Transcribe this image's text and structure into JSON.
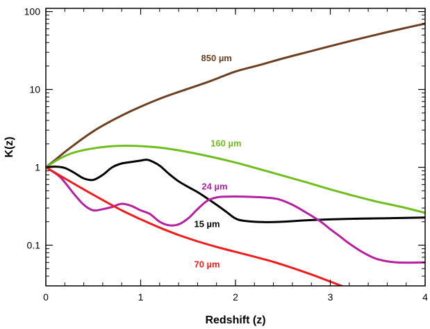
{
  "chart_data": {
    "type": "line",
    "xlabel": "Redshift (z)",
    "ylabel": "K(z)",
    "xlim": [
      0,
      4
    ],
    "ylim": [
      0.03,
      110
    ],
    "yscale": "log",
    "grid": false,
    "x_ticks": [
      0,
      1,
      2,
      3,
      4
    ],
    "y_ticks": [
      0.1,
      1,
      10,
      100
    ],
    "y_tick_labels": [
      "0.1",
      "1",
      "10",
      "100"
    ],
    "series": [
      {
        "name": "850 µm",
        "color": "#6b3f1f",
        "label_at": [
          1.8,
          23
        ],
        "points": [
          [
            0,
            1
          ],
          [
            0.1,
            1.25
          ],
          [
            0.25,
            1.75
          ],
          [
            0.5,
            2.9
          ],
          [
            0.75,
            4.3
          ],
          [
            1.0,
            6.0
          ],
          [
            1.25,
            8.0
          ],
          [
            1.5,
            10.2
          ],
          [
            1.75,
            13.0
          ],
          [
            2.0,
            17.0
          ],
          [
            2.25,
            20.5
          ],
          [
            2.5,
            25.0
          ],
          [
            2.75,
            30.0
          ],
          [
            3.0,
            36.0
          ],
          [
            3.25,
            43.0
          ],
          [
            3.5,
            51.0
          ],
          [
            3.75,
            60.0
          ],
          [
            4.0,
            70.0
          ]
        ]
      },
      {
        "name": "160 µm",
        "color": "#6fbe1e",
        "label_at": [
          1.9,
          1.85
        ],
        "points": [
          [
            0,
            1
          ],
          [
            0.15,
            1.3
          ],
          [
            0.3,
            1.55
          ],
          [
            0.5,
            1.75
          ],
          [
            0.75,
            1.88
          ],
          [
            1.0,
            1.87
          ],
          [
            1.25,
            1.76
          ],
          [
            1.5,
            1.57
          ],
          [
            1.75,
            1.36
          ],
          [
            2.0,
            1.15
          ],
          [
            2.25,
            0.95
          ],
          [
            2.5,
            0.78
          ],
          [
            2.75,
            0.64
          ],
          [
            3.0,
            0.52
          ],
          [
            3.25,
            0.43
          ],
          [
            3.5,
            0.36
          ],
          [
            3.75,
            0.31
          ],
          [
            4.0,
            0.26
          ]
        ]
      },
      {
        "name": "15 µm",
        "color": "#000000",
        "label_at": [
          1.7,
          0.17
        ],
        "points": [
          [
            0,
            1
          ],
          [
            0.1,
            1.02
          ],
          [
            0.2,
            0.98
          ],
          [
            0.3,
            0.85
          ],
          [
            0.4,
            0.72
          ],
          [
            0.5,
            0.69
          ],
          [
            0.6,
            0.8
          ],
          [
            0.7,
            1.0
          ],
          [
            0.8,
            1.12
          ],
          [
            0.9,
            1.17
          ],
          [
            1.0,
            1.22
          ],
          [
            1.05,
            1.25
          ],
          [
            1.1,
            1.22
          ],
          [
            1.2,
            1.05
          ],
          [
            1.3,
            0.82
          ],
          [
            1.4,
            0.66
          ],
          [
            1.5,
            0.56
          ],
          [
            1.6,
            0.48
          ],
          [
            1.7,
            0.4
          ],
          [
            1.8,
            0.33
          ],
          [
            1.9,
            0.27
          ],
          [
            2.0,
            0.22
          ],
          [
            2.1,
            0.205
          ],
          [
            2.3,
            0.198
          ],
          [
            2.5,
            0.2
          ],
          [
            2.8,
            0.21
          ],
          [
            3.2,
            0.218
          ],
          [
            3.6,
            0.222
          ],
          [
            4.0,
            0.226
          ]
        ]
      },
      {
        "name": "24 µm",
        "color": "#b51fa0",
        "label_at": [
          1.78,
          0.52
        ],
        "points": [
          [
            0,
            1
          ],
          [
            0.15,
            0.75
          ],
          [
            0.3,
            0.45
          ],
          [
            0.4,
            0.33
          ],
          [
            0.5,
            0.28
          ],
          [
            0.6,
            0.29
          ],
          [
            0.7,
            0.31
          ],
          [
            0.8,
            0.34
          ],
          [
            0.9,
            0.32
          ],
          [
            1.0,
            0.28
          ],
          [
            1.1,
            0.25
          ],
          [
            1.2,
            0.2
          ],
          [
            1.3,
            0.18
          ],
          [
            1.4,
            0.185
          ],
          [
            1.5,
            0.22
          ],
          [
            1.6,
            0.29
          ],
          [
            1.7,
            0.37
          ],
          [
            1.8,
            0.41
          ],
          [
            1.9,
            0.42
          ],
          [
            2.1,
            0.42
          ],
          [
            2.3,
            0.41
          ],
          [
            2.45,
            0.39
          ],
          [
            2.6,
            0.33
          ],
          [
            2.75,
            0.26
          ],
          [
            2.9,
            0.2
          ],
          [
            3.0,
            0.16
          ],
          [
            3.1,
            0.13
          ],
          [
            3.2,
            0.105
          ],
          [
            3.35,
            0.08
          ],
          [
            3.5,
            0.066
          ],
          [
            3.7,
            0.06
          ],
          [
            4.0,
            0.06
          ]
        ]
      },
      {
        "name": "70 µm",
        "color": "#ee1c1c",
        "label_at": [
          1.7,
          0.052
        ],
        "points": [
          [
            0,
            1
          ],
          [
            0.2,
            0.72
          ],
          [
            0.4,
            0.52
          ],
          [
            0.6,
            0.38
          ],
          [
            0.8,
            0.28
          ],
          [
            1.0,
            0.215
          ],
          [
            1.2,
            0.168
          ],
          [
            1.4,
            0.135
          ],
          [
            1.6,
            0.112
          ],
          [
            1.8,
            0.095
          ],
          [
            2.0,
            0.082
          ],
          [
            2.2,
            0.071
          ],
          [
            2.4,
            0.061
          ],
          [
            2.6,
            0.051
          ],
          [
            2.8,
            0.042
          ],
          [
            3.0,
            0.034
          ],
          [
            3.15,
            0.029
          ]
        ]
      }
    ]
  }
}
